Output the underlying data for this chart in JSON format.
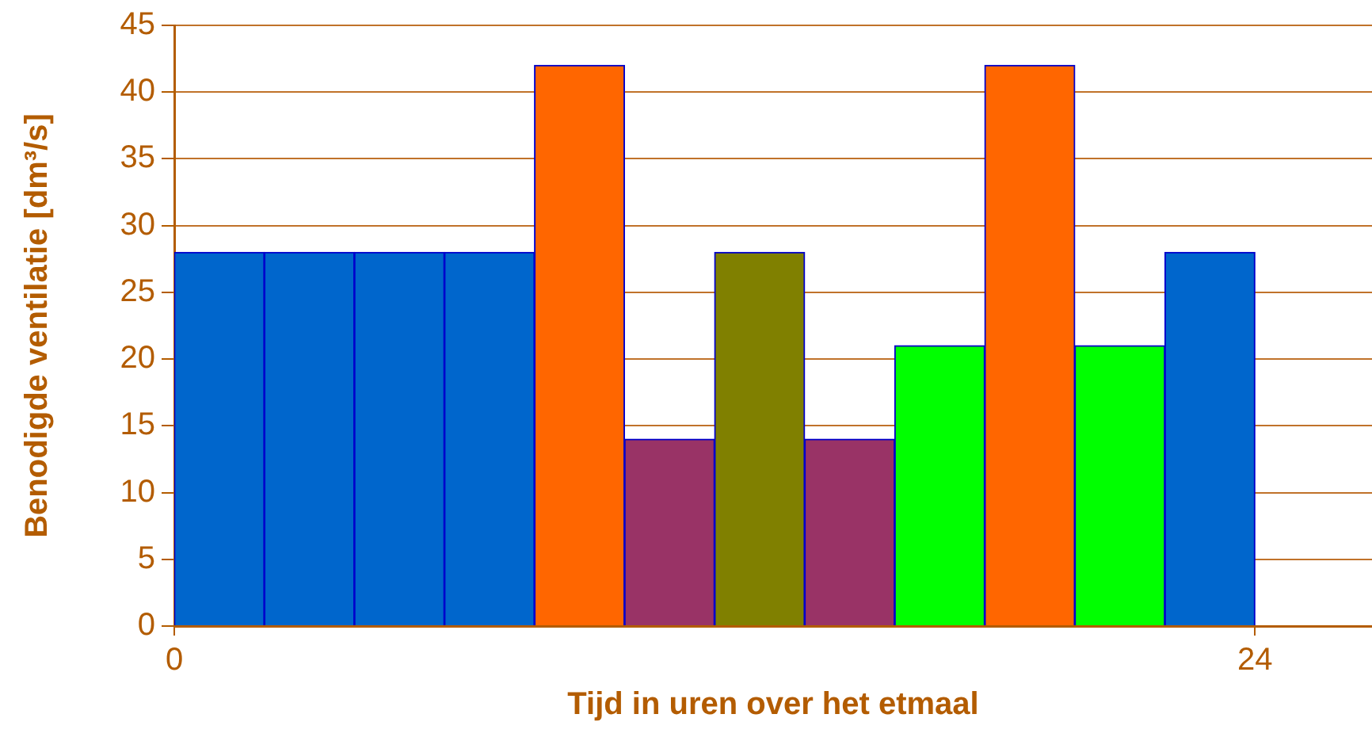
{
  "chart_data": {
    "type": "histogram",
    "xlabel": "Tijd in uren over het etmaal",
    "ylabel": "Benodigde ventilatie [dm³/s]",
    "bins": [
      0,
      2,
      4,
      6,
      8,
      10,
      12,
      14,
      16,
      18,
      20,
      22,
      24
    ],
    "values": [
      28,
      28,
      28,
      28,
      42,
      14,
      28,
      14,
      21,
      42,
      21,
      28
    ],
    "colors": [
      "#0066cc",
      "#0066cc",
      "#0066cc",
      "#0066cc",
      "#ff6600",
      "#993366",
      "#808000",
      "#993366",
      "#00ff00",
      "#ff6600",
      "#00ff00",
      "#0066cc"
    ],
    "xlim": [
      0,
      26.6
    ],
    "xticks": [
      0,
      24
    ],
    "ylim": [
      0,
      45
    ],
    "yticks": [
      0,
      5,
      10,
      15,
      20,
      25,
      30,
      35,
      40,
      45
    ],
    "grid": "y",
    "legend": false
  }
}
